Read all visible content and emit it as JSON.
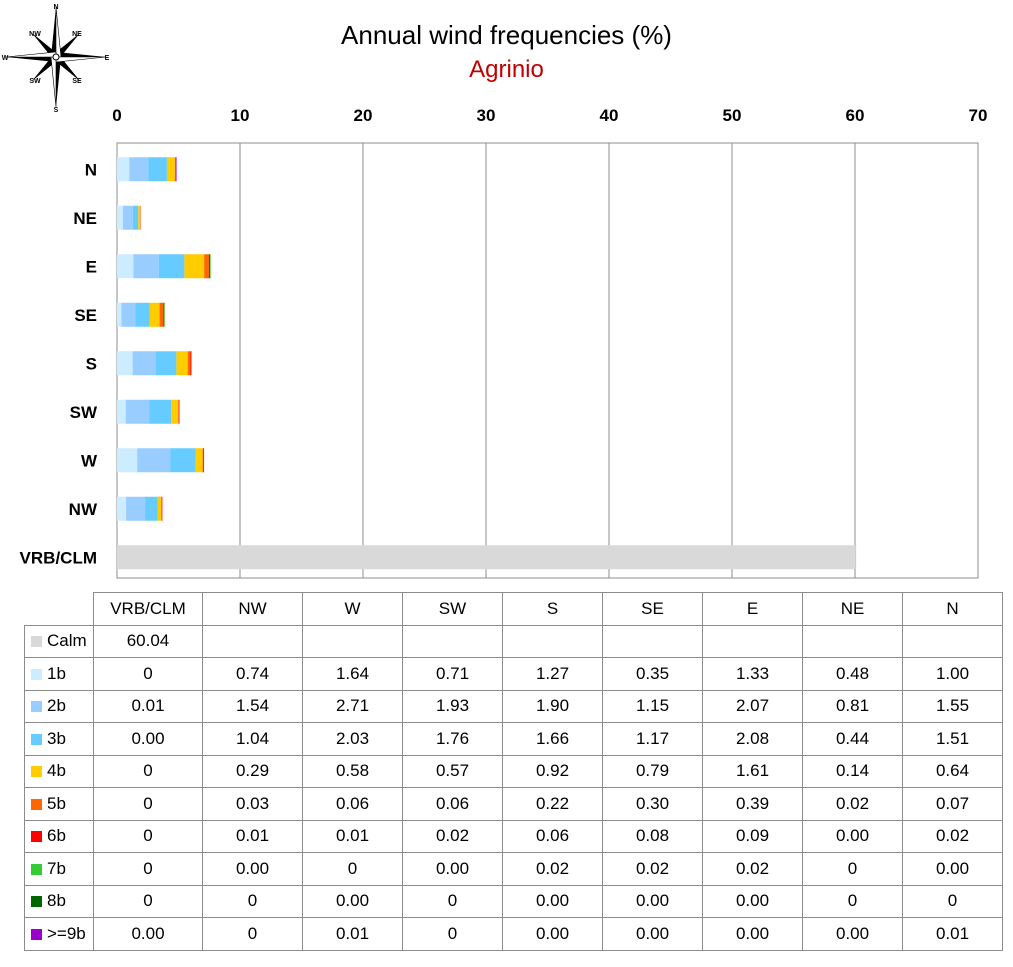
{
  "compass": {
    "labels": [
      "N",
      "NE",
      "E",
      "SE",
      "S",
      "SW",
      "W",
      "NW"
    ]
  },
  "chart_data": {
    "type": "bar",
    "orientation": "horizontal",
    "stacked": true,
    "title": "Annual wind frequencies (%)",
    "subtitle": "Agrinio",
    "categories": [
      "N",
      "NE",
      "E",
      "SE",
      "S",
      "SW",
      "W",
      "NW",
      "VRB/CLM"
    ],
    "xlim": [
      0,
      70
    ],
    "xticks": [
      0,
      10,
      20,
      30,
      40,
      50,
      60,
      70
    ],
    "grid": true,
    "legend": "table-below",
    "series": [
      {
        "name": "Calm",
        "color": "#d9d9d9",
        "values": [
          null,
          null,
          null,
          null,
          null,
          null,
          null,
          null,
          60.04
        ]
      },
      {
        "name": "1b",
        "color": "#ccecff",
        "values": [
          1.0,
          0.48,
          1.33,
          0.35,
          1.27,
          0.71,
          1.64,
          0.74,
          0
        ]
      },
      {
        "name": "2b",
        "color": "#99ccff",
        "values": [
          1.55,
          0.81,
          2.07,
          1.15,
          1.9,
          1.93,
          2.71,
          1.54,
          0.01
        ]
      },
      {
        "name": "3b",
        "color": "#66ccff",
        "values": [
          1.51,
          0.44,
          2.08,
          1.17,
          1.66,
          1.76,
          2.03,
          1.04,
          0.0
        ]
      },
      {
        "name": "4b",
        "color": "#ffcc00",
        "values": [
          0.64,
          0.14,
          1.61,
          0.79,
          0.92,
          0.57,
          0.58,
          0.29,
          0
        ]
      },
      {
        "name": "5b",
        "color": "#ff6600",
        "values": [
          0.07,
          0.02,
          0.39,
          0.3,
          0.22,
          0.06,
          0.06,
          0.03,
          0
        ]
      },
      {
        "name": "6b",
        "color": "#ff0000",
        "values": [
          0.02,
          0.0,
          0.09,
          0.08,
          0.06,
          0.02,
          0.01,
          0.01,
          0
        ]
      },
      {
        "name": "7b",
        "color": "#33cc33",
        "values": [
          0.0,
          0,
          0.02,
          0.02,
          0.02,
          0.0,
          0,
          0.0,
          0
        ]
      },
      {
        "name": "8b",
        "color": "#006600",
        "values": [
          0,
          0,
          0.0,
          0.0,
          0.0,
          0,
          0.0,
          0,
          0
        ]
      },
      {
        "name": ">=9b",
        "color": "#9900cc",
        "values": [
          0.01,
          0.0,
          0.0,
          0.0,
          0.0,
          0,
          0.01,
          0,
          0.0
        ]
      }
    ]
  },
  "table": {
    "columns": [
      "VRB/CLM",
      "NW",
      "W",
      "SW",
      "S",
      "SE",
      "E",
      "NE",
      "N"
    ],
    "rows": [
      {
        "label": "Calm",
        "color": "#d9d9d9",
        "cells": [
          "60.04",
          "",
          "",
          "",
          "",
          "",
          "",
          "",
          ""
        ]
      },
      {
        "label": "1b",
        "color": "#ccecff",
        "cells": [
          "0",
          "0.74",
          "1.64",
          "0.71",
          "1.27",
          "0.35",
          "1.33",
          "0.48",
          "1.00"
        ]
      },
      {
        "label": "2b",
        "color": "#99ccff",
        "cells": [
          "0.01",
          "1.54",
          "2.71",
          "1.93",
          "1.90",
          "1.15",
          "2.07",
          "0.81",
          "1.55"
        ]
      },
      {
        "label": "3b",
        "color": "#66ccff",
        "cells": [
          "0.00",
          "1.04",
          "2.03",
          "1.76",
          "1.66",
          "1.17",
          "2.08",
          "0.44",
          "1.51"
        ]
      },
      {
        "label": "4b",
        "color": "#ffcc00",
        "cells": [
          "0",
          "0.29",
          "0.58",
          "0.57",
          "0.92",
          "0.79",
          "1.61",
          "0.14",
          "0.64"
        ]
      },
      {
        "label": "5b",
        "color": "#ff6600",
        "cells": [
          "0",
          "0.03",
          "0.06",
          "0.06",
          "0.22",
          "0.30",
          "0.39",
          "0.02",
          "0.07"
        ]
      },
      {
        "label": "6b",
        "color": "#ff0000",
        "cells": [
          "0",
          "0.01",
          "0.01",
          "0.02",
          "0.06",
          "0.08",
          "0.09",
          "0.00",
          "0.02"
        ]
      },
      {
        "label": "7b",
        "color": "#33cc33",
        "cells": [
          "0",
          "0.00",
          "0",
          "0.00",
          "0.02",
          "0.02",
          "0.02",
          "0",
          "0.00"
        ]
      },
      {
        "label": "8b",
        "color": "#006600",
        "cells": [
          "0",
          "0",
          "0.00",
          "0",
          "0.00",
          "0.00",
          "0.00",
          "0",
          "0"
        ]
      },
      {
        "label": ">=9b",
        "color": "#9900cc",
        "cells": [
          "0.00",
          "0",
          "0.01",
          "0",
          "0.00",
          "0.00",
          "0.00",
          "0.00",
          "0.01"
        ]
      }
    ]
  }
}
